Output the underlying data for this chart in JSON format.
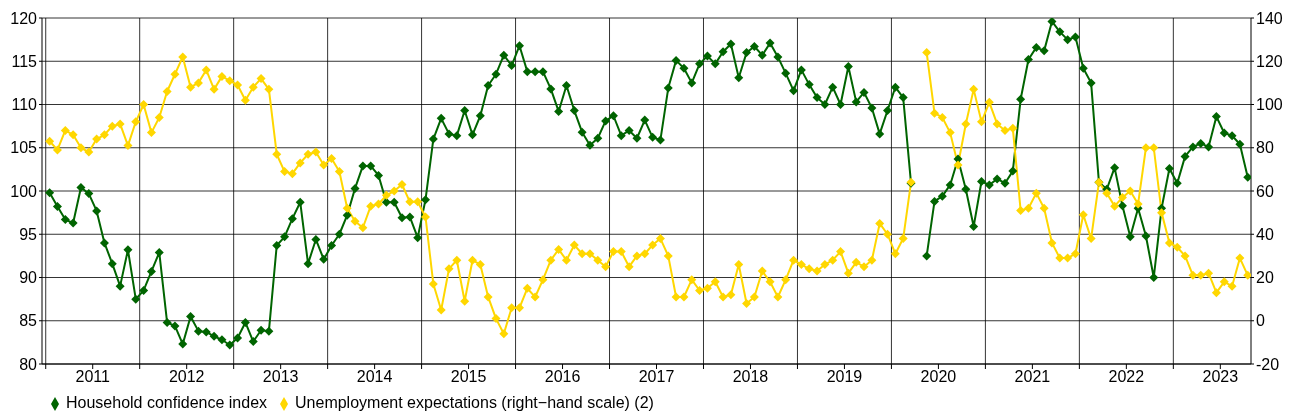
{
  "chart_data": {
    "type": "line",
    "x": [
      "2011-01",
      "2011-02",
      "2011-03",
      "2011-04",
      "2011-05",
      "2011-06",
      "2011-07",
      "2011-08",
      "2011-09",
      "2011-10",
      "2011-11",
      "2011-12",
      "2012-01",
      "2012-02",
      "2012-03",
      "2012-04",
      "2012-05",
      "2012-06",
      "2012-07",
      "2012-08",
      "2012-09",
      "2012-10",
      "2012-11",
      "2012-12",
      "2013-01",
      "2013-02",
      "2013-03",
      "2013-04",
      "2013-05",
      "2013-06",
      "2013-07",
      "2013-08",
      "2013-09",
      "2013-10",
      "2013-11",
      "2013-12",
      "2014-01",
      "2014-02",
      "2014-03",
      "2014-04",
      "2014-05",
      "2014-06",
      "2014-07",
      "2014-08",
      "2014-09",
      "2014-10",
      "2014-11",
      "2014-12",
      "2015-01",
      "2015-02",
      "2015-03",
      "2015-04",
      "2015-05",
      "2015-06",
      "2015-07",
      "2015-08",
      "2015-09",
      "2015-10",
      "2015-11",
      "2015-12",
      "2016-01",
      "2016-02",
      "2016-03",
      "2016-04",
      "2016-05",
      "2016-06",
      "2016-07",
      "2016-08",
      "2016-09",
      "2016-10",
      "2016-11",
      "2016-12",
      "2017-01",
      "2017-02",
      "2017-03",
      "2017-04",
      "2017-05",
      "2017-06",
      "2017-07",
      "2017-08",
      "2017-09",
      "2017-10",
      "2017-11",
      "2017-12",
      "2018-01",
      "2018-02",
      "2018-03",
      "2018-04",
      "2018-05",
      "2018-06",
      "2018-07",
      "2018-08",
      "2018-09",
      "2018-10",
      "2018-11",
      "2018-12",
      "2019-01",
      "2019-02",
      "2019-03",
      "2019-04",
      "2019-05",
      "2019-06",
      "2019-07",
      "2019-08",
      "2019-09",
      "2019-10",
      "2019-11",
      "2019-12",
      "2020-01",
      "2020-02",
      "2020-03",
      "2020-04",
      "2020-05",
      "2020-06",
      "2020-07",
      "2020-08",
      "2020-09",
      "2020-10",
      "2020-11",
      "2020-12",
      "2021-01",
      "2021-02",
      "2021-03",
      "2021-04",
      "2021-05",
      "2021-06",
      "2021-07",
      "2021-08",
      "2021-09",
      "2021-10",
      "2021-11",
      "2021-12",
      "2022-01",
      "2022-02",
      "2022-03",
      "2022-04",
      "2022-05",
      "2022-06",
      "2022-07",
      "2022-08",
      "2022-09",
      "2022-10",
      "2022-11",
      "2022-12",
      "2023-01",
      "2023-02",
      "2023-03",
      "2023-04",
      "2023-05",
      "2023-06",
      "2023-07",
      "2023-08",
      "2023-09",
      "2023-10"
    ],
    "series": [
      {
        "name": "Household confidence index",
        "color": "#006400",
        "values": [
          99.8,
          98.2,
          96.7,
          96.3,
          100.4,
          99.7,
          97.7,
          94.0,
          91.6,
          89.0,
          93.2,
          87.5,
          88.5,
          90.7,
          92.9,
          84.8,
          84.4,
          82.3,
          85.5,
          83.8,
          83.7,
          83.2,
          82.8,
          82.2,
          83.0,
          84.8,
          82.6,
          83.9,
          83.8,
          93.7,
          94.7,
          96.8,
          98.7,
          91.6,
          94.4,
          92.1,
          93.7,
          95.0,
          97.2,
          100.3,
          102.9,
          102.9,
          101.8,
          98.7,
          98.7,
          96.9,
          97.0,
          94.6,
          99.0,
          106.0,
          108.4,
          106.6,
          106.4,
          109.3,
          106.5,
          108.7,
          112.2,
          113.5,
          115.7,
          114.5,
          116.8,
          113.8,
          113.8,
          113.8,
          111.8,
          109.2,
          112.2,
          109.3,
          106.8,
          105.3,
          106.1,
          108.1,
          108.7,
          106.4,
          107.0,
          106.1,
          108.2,
          106.2,
          105.9,
          111.9,
          115.1,
          114.2,
          112.5,
          114.7,
          115.6,
          114.7,
          116.1,
          117.0,
          113.1,
          116.0,
          116.7,
          115.7,
          117.1,
          115.5,
          113.6,
          111.6,
          114.0,
          112.3,
          110.8,
          110.0,
          112.0,
          110.0,
          114.4,
          110.3,
          111.4,
          109.6,
          106.6,
          109.3,
          112.0,
          110.8,
          100.9,
          null,
          92.5,
          98.8,
          99.4,
          100.7,
          103.7,
          100.2,
          95.9,
          101.1,
          100.7,
          101.4,
          100.9,
          102.3,
          110.6,
          115.2,
          116.6,
          116.2,
          119.6,
          118.4,
          117.5,
          117.8,
          114.2,
          112.5,
          101.0,
          100.2,
          102.7,
          98.3,
          94.7,
          98.0,
          94.8,
          90.0,
          98.0,
          102.6,
          100.9,
          104.0,
          105.1,
          105.5,
          105.1,
          108.6,
          106.7,
          106.4,
          105.4,
          101.6
        ]
      },
      {
        "name": "Unemployment expectations (right−hand scale) (2)",
        "color": "#ffd700",
        "axis": "y2",
        "values": [
          83,
          79,
          88,
          86,
          80,
          78,
          84,
          86,
          90,
          91,
          81,
          92,
          100,
          87,
          94,
          106,
          114,
          122,
          108,
          110,
          116,
          107,
          113,
          111,
          109,
          102,
          108,
          112,
          107,
          77,
          69,
          68,
          73,
          77,
          78,
          72,
          75,
          69,
          52,
          46,
          43,
          53,
          54,
          58,
          60,
          63,
          55,
          55,
          48,
          17,
          5,
          24,
          28,
          9,
          28,
          26,
          11,
          1,
          -6,
          6,
          6,
          15,
          11,
          19,
          28,
          33,
          28,
          35,
          31,
          31,
          28,
          25,
          32,
          32,
          25,
          30,
          31,
          35,
          38,
          30,
          11,
          11,
          19,
          14,
          15,
          18,
          11,
          12,
          26,
          8,
          11,
          23,
          18,
          11,
          19,
          28,
          26,
          24,
          23,
          26,
          28,
          32,
          22,
          27,
          25,
          28,
          45,
          40,
          31,
          38,
          64,
          null,
          124,
          96,
          94,
          87,
          72,
          91,
          107,
          92,
          101,
          91,
          88,
          89,
          51,
          52,
          59,
          52,
          36,
          29,
          29,
          31,
          49,
          38,
          64,
          59,
          53,
          57,
          60,
          54,
          80,
          80,
          50,
          36,
          34,
          30,
          21,
          21,
          22,
          13,
          18,
          16,
          29,
          21
        ]
      }
    ],
    "xlim": [
      "2010-12-17",
      "2023-10-29"
    ],
    "xticks": [
      {
        "value": "2011-01-01",
        "label": null
      },
      {
        "value": "2011-07-01",
        "label": "2011"
      },
      {
        "value": "2012-01-01",
        "label": null
      },
      {
        "value": "2012-07-01",
        "label": "2012"
      },
      {
        "value": "2013-01-01",
        "label": null
      },
      {
        "value": "2013-07-01",
        "label": "2013"
      },
      {
        "value": "2014-01-01",
        "label": null
      },
      {
        "value": "2014-07-01",
        "label": "2014"
      },
      {
        "value": "2015-01-01",
        "label": null
      },
      {
        "value": "2015-07-01",
        "label": "2015"
      },
      {
        "value": "2016-01-01",
        "label": null
      },
      {
        "value": "2016-07-01",
        "label": "2016"
      },
      {
        "value": "2017-01-01",
        "label": null
      },
      {
        "value": "2017-07-01",
        "label": "2017"
      },
      {
        "value": "2018-01-01",
        "label": null
      },
      {
        "value": "2018-07-01",
        "label": "2018"
      },
      {
        "value": "2019-01-01",
        "label": null
      },
      {
        "value": "2019-07-01",
        "label": "2019"
      },
      {
        "value": "2020-01-01",
        "label": null
      },
      {
        "value": "2020-07-01",
        "label": "2020"
      },
      {
        "value": "2021-01-01",
        "label": null
      },
      {
        "value": "2021-07-01",
        "label": "2021"
      },
      {
        "value": "2022-01-01",
        "label": null
      },
      {
        "value": "2022-07-01",
        "label": "2022"
      },
      {
        "value": "2023-01-01",
        "label": null
      },
      {
        "value": "2023-07-01",
        "label": "2023"
      }
    ],
    "ylim": [
      80,
      120
    ],
    "yticks": [
      80,
      85,
      90,
      95,
      100,
      105,
      110,
      115,
      120
    ],
    "y2lim": [
      -20,
      140
    ],
    "y2ticks": [
      -20,
      0,
      20,
      40,
      60,
      80,
      100,
      120,
      140
    ],
    "grid": true,
    "legend": "bottom left",
    "marker": "diamond",
    "line_style": "solid"
  }
}
